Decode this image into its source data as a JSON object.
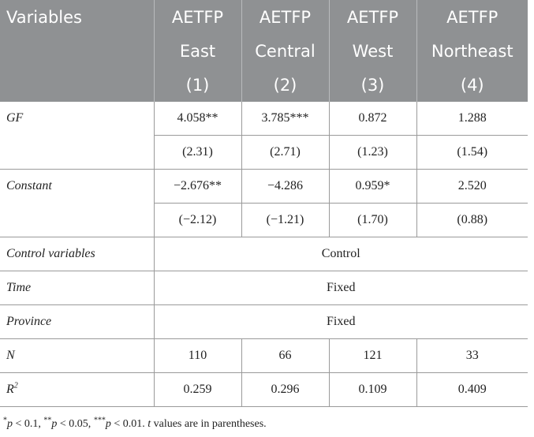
{
  "table": {
    "header": {
      "row1": [
        "Variables",
        "AETFP",
        "AETFP",
        "AETFP",
        "AETFP"
      ],
      "row2": [
        "",
        "East",
        "Central",
        "West",
        "Northeast"
      ],
      "row3": [
        "",
        "(1)",
        "(2)",
        "(3)",
        "(4)"
      ]
    },
    "gf": {
      "label": "GF",
      "coef": [
        "4.058**",
        "3.785***",
        "0.872",
        "1.288"
      ],
      "t": [
        "(2.31)",
        "(2.71)",
        "(1.23)",
        "(1.54)"
      ]
    },
    "constant": {
      "label": "Constant",
      "coef": [
        "−2.676**",
        "−4.286",
        "0.959*",
        "2.520"
      ],
      "t": [
        "(−2.12)",
        "(−1.21)",
        "(1.70)",
        "(0.88)"
      ]
    },
    "control": {
      "label": "Control variables",
      "value": "Control"
    },
    "time": {
      "label": "Time",
      "value": "Fixed"
    },
    "province": {
      "label": "Province",
      "value": "Fixed"
    },
    "n": {
      "label": "N",
      "values": [
        "110",
        "66",
        "121",
        "33"
      ]
    },
    "r2": {
      "label_base": "R",
      "label_sup": "2",
      "values": [
        "0.259",
        "0.296",
        "0.109",
        "0.409"
      ]
    }
  },
  "footnote": {
    "sym1": "*",
    "p1": "p",
    "t1": " < 0.1, ",
    "sym2": "**",
    "p2": "p",
    "t2": " < 0.05, ",
    "sym3": "***",
    "p3": "p",
    "t3": " < 0.01. ",
    "t_letter": "t",
    "t4": " values are in parentheses."
  }
}
